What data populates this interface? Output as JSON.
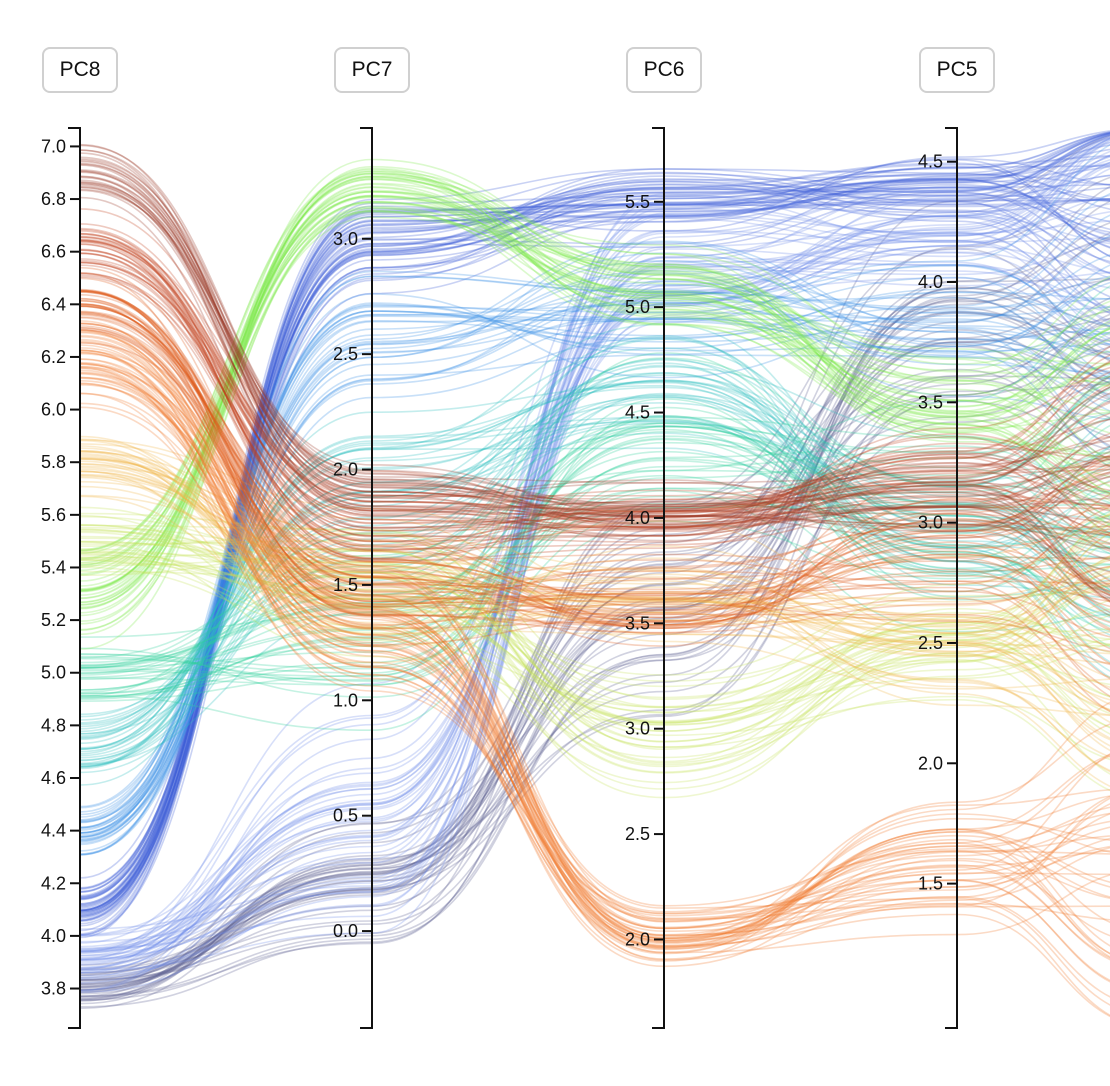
{
  "chart_data": {
    "type": "parallel_coordinates",
    "title": "",
    "axes": [
      {
        "name": "PC8",
        "range": [
          3.65,
          7.07
        ],
        "ticks": [
          "3.8",
          "4.0",
          "4.2",
          "4.4",
          "4.6",
          "4.8",
          "5.0",
          "5.2",
          "5.4",
          "5.6",
          "5.8",
          "6.0",
          "6.2",
          "6.4",
          "6.6",
          "6.8",
          "7.0"
        ]
      },
      {
        "name": "PC7",
        "range": [
          -0.42,
          3.48
        ],
        "ticks": [
          "0.0",
          "0.5",
          "1.0",
          "1.5",
          "2.0",
          "2.5",
          "3.0"
        ]
      },
      {
        "name": "PC6",
        "range": [
          1.58,
          5.85
        ],
        "ticks": [
          "2.0",
          "2.5",
          "3.0",
          "3.5",
          "4.0",
          "4.5",
          "5.0",
          "5.5"
        ]
      },
      {
        "name": "PC5",
        "range": [
          0.9,
          4.64
        ],
        "ticks": [
          "1.5",
          "2.0",
          "2.5",
          "3.0",
          "3.5",
          "4.0",
          "4.5"
        ]
      }
    ],
    "clusters": [
      {
        "name": "slate",
        "color": "#5a5f8f",
        "values": [
          3.8,
          0.2,
          3.6,
          3.8
        ],
        "spread": [
          0.12,
          0.4,
          0.8,
          0.6
        ],
        "count": 40
      },
      {
        "name": "blue",
        "color": "#3d5ed6",
        "values": [
          4.1,
          3.0,
          5.5,
          4.4
        ],
        "spread": [
          0.15,
          0.25,
          0.25,
          0.2
        ],
        "count": 50
      },
      {
        "name": "light blue",
        "color": "#6f8de8",
        "values": [
          3.9,
          0.5,
          5.2,
          4.2
        ],
        "spread": [
          0.15,
          0.7,
          0.5,
          0.3
        ],
        "count": 45
      },
      {
        "name": "sky",
        "color": "#3b8fe6",
        "values": [
          4.4,
          2.6,
          5.0,
          3.8
        ],
        "spread": [
          0.15,
          0.4,
          0.4,
          0.4
        ],
        "count": 35
      },
      {
        "name": "teal",
        "color": "#2cc0c0",
        "values": [
          4.7,
          1.8,
          4.6,
          3.0
        ],
        "spread": [
          0.2,
          0.6,
          0.5,
          0.5
        ],
        "count": 35
      },
      {
        "name": "sea green",
        "color": "#2fd09a",
        "values": [
          5.0,
          1.3,
          4.3,
          3.0
        ],
        "spread": [
          0.2,
          0.6,
          0.6,
          0.6
        ],
        "count": 35
      },
      {
        "name": "lime",
        "color": "#7ee84a",
        "values": [
          5.3,
          3.2,
          5.1,
          3.5
        ],
        "spread": [
          0.25,
          0.2,
          0.3,
          0.3
        ],
        "count": 40
      },
      {
        "name": "yellow green",
        "color": "#c5e25a",
        "values": [
          5.5,
          1.5,
          3.0,
          2.5
        ],
        "spread": [
          0.2,
          0.4,
          0.4,
          0.3
        ],
        "count": 35
      },
      {
        "name": "gold",
        "color": "#f0b84a",
        "values": [
          5.8,
          1.5,
          3.7,
          2.5
        ],
        "spread": [
          0.2,
          0.4,
          0.4,
          0.4
        ],
        "count": 35
      },
      {
        "name": "orange",
        "color": "#f07a30",
        "values": [
          6.2,
          1.3,
          2.0,
          1.6
        ],
        "spread": [
          0.25,
          0.4,
          0.25,
          0.4
        ],
        "count": 45
      },
      {
        "name": "vermilion",
        "color": "#e05a1a",
        "values": [
          6.4,
          1.5,
          3.6,
          2.9
        ],
        "spread": [
          0.2,
          0.3,
          0.3,
          0.4
        ],
        "count": 40
      },
      {
        "name": "brick",
        "color": "#c2401e",
        "values": [
          6.6,
          1.8,
          4.0,
          3.2
        ],
        "spread": [
          0.2,
          0.25,
          0.2,
          0.3
        ],
        "count": 35
      },
      {
        "name": "brown",
        "color": "#9a3a28",
        "values": [
          6.9,
          1.9,
          4.0,
          3.1
        ],
        "spread": [
          0.15,
          0.25,
          0.25,
          0.3
        ],
        "count": 30
      }
    ]
  }
}
